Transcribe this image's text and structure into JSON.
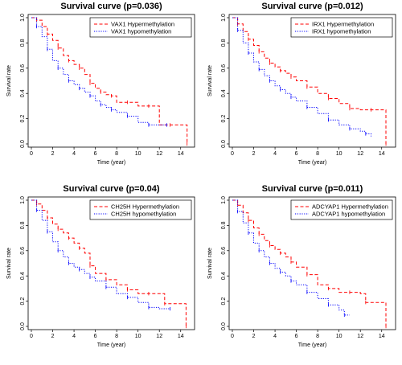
{
  "chart_data": [
    {
      "type": "line",
      "title": "Survival curve (p=0.036)",
      "xlabel": "Time (year)",
      "ylabel": "Survival rate",
      "xlim": [
        0,
        15
      ],
      "ylim": [
        0,
        1
      ],
      "xticks": [
        "0",
        "2",
        "4",
        "6",
        "8",
        "10",
        "12",
        "14"
      ],
      "yticks": [
        "0.0",
        "0.2",
        "0.4",
        "0.6",
        "0.8",
        "1.0"
      ],
      "legend_position": "top-right",
      "series": [
        {
          "name": "VAX1 Hypermethylation",
          "color": "#ff0000",
          "dash": "dashed",
          "x": [
            0,
            0.5,
            1,
            1.5,
            2,
            2.5,
            3,
            3.5,
            4,
            4.5,
            5,
            5.5,
            6,
            6.5,
            7,
            7.5,
            8,
            9,
            10,
            11,
            12,
            13,
            14,
            14.6
          ],
          "y": [
            1.0,
            0.98,
            0.93,
            0.87,
            0.82,
            0.76,
            0.7,
            0.66,
            0.63,
            0.6,
            0.55,
            0.48,
            0.44,
            0.41,
            0.39,
            0.38,
            0.33,
            0.33,
            0.3,
            0.3,
            0.15,
            0.15,
            0.15,
            0.0
          ]
        },
        {
          "name": "VAX1 hypomethylation",
          "color": "#0000ff",
          "dash": "dotted",
          "x": [
            0,
            0.5,
            1,
            1.5,
            2,
            2.5,
            3,
            3.5,
            4,
            4.5,
            5,
            5.5,
            6,
            6.5,
            7,
            7.5,
            8,
            9,
            10,
            11,
            12,
            12.7
          ],
          "y": [
            1.0,
            0.93,
            0.85,
            0.75,
            0.66,
            0.6,
            0.55,
            0.5,
            0.47,
            0.44,
            0.41,
            0.38,
            0.34,
            0.31,
            0.29,
            0.27,
            0.25,
            0.22,
            0.17,
            0.15,
            0.15,
            0.15
          ]
        }
      ]
    },
    {
      "type": "line",
      "title": "Survival curve (p=0.012)",
      "xlabel": "Time (year)",
      "ylabel": "Survival rate",
      "xlim": [
        0,
        15
      ],
      "ylim": [
        0,
        1
      ],
      "xticks": [
        "0",
        "2",
        "4",
        "6",
        "8",
        "10",
        "12",
        "14"
      ],
      "yticks": [
        "0.0",
        "0.2",
        "0.4",
        "0.6",
        "0.8",
        "1.0"
      ],
      "legend_position": "top-right",
      "series": [
        {
          "name": "IRX1 Hypermethylation",
          "color": "#ff0000",
          "dash": "dashed",
          "x": [
            0,
            0.5,
            1,
            1.5,
            2,
            2.5,
            3,
            3.5,
            4,
            4.5,
            5,
            5.5,
            6,
            7,
            8,
            9,
            10,
            11,
            12,
            13,
            14,
            14.4
          ],
          "y": [
            1.0,
            0.95,
            0.89,
            0.83,
            0.78,
            0.73,
            0.68,
            0.64,
            0.61,
            0.58,
            0.56,
            0.53,
            0.5,
            0.45,
            0.4,
            0.36,
            0.32,
            0.28,
            0.27,
            0.27,
            0.27,
            0.0
          ]
        },
        {
          "name": "IRX1 hypomethylation",
          "color": "#0000ff",
          "dash": "dotted",
          "x": [
            0,
            0.5,
            1,
            1.5,
            2,
            2.5,
            3,
            3.5,
            4,
            4.5,
            5,
            5.5,
            6,
            7,
            8,
            9,
            10,
            11,
            12,
            12.5,
            13
          ],
          "y": [
            1.0,
            0.9,
            0.8,
            0.72,
            0.65,
            0.59,
            0.54,
            0.5,
            0.46,
            0.43,
            0.4,
            0.37,
            0.34,
            0.29,
            0.24,
            0.19,
            0.15,
            0.12,
            0.1,
            0.08,
            0.06
          ]
        }
      ]
    },
    {
      "type": "line",
      "title": "Survival curve (p=0.04)",
      "xlabel": "Time (year)",
      "ylabel": "Survival rate",
      "xlim": [
        0,
        15
      ],
      "ylim": [
        0,
        1
      ],
      "xticks": [
        "0",
        "2",
        "4",
        "6",
        "8",
        "10",
        "12",
        "14"
      ],
      "yticks": [
        "0.0",
        "0.2",
        "0.4",
        "0.6",
        "0.8",
        "1.0"
      ],
      "legend_position": "top-right",
      "series": [
        {
          "name": "CH25H Hypermethylation",
          "color": "#ff0000",
          "dash": "dashed",
          "x": [
            0,
            0.5,
            1,
            1.5,
            2,
            2.5,
            3,
            3.5,
            4,
            4.5,
            5,
            5.5,
            6,
            7,
            8,
            9,
            10,
            11,
            12,
            12.5,
            14,
            14.5
          ],
          "y": [
            1.0,
            0.97,
            0.92,
            0.86,
            0.81,
            0.77,
            0.74,
            0.7,
            0.66,
            0.62,
            0.58,
            0.48,
            0.42,
            0.37,
            0.33,
            0.29,
            0.26,
            0.26,
            0.26,
            0.18,
            0.18,
            0.0
          ]
        },
        {
          "name": "CH25H hypomethylation",
          "color": "#0000ff",
          "dash": "dotted",
          "x": [
            0,
            0.5,
            1,
            1.5,
            2,
            2.5,
            3,
            3.5,
            4,
            4.5,
            5,
            5.5,
            6,
            7,
            8,
            9,
            10,
            11,
            12,
            13
          ],
          "y": [
            1.0,
            0.92,
            0.84,
            0.75,
            0.67,
            0.6,
            0.55,
            0.5,
            0.47,
            0.45,
            0.42,
            0.39,
            0.36,
            0.31,
            0.26,
            0.23,
            0.19,
            0.15,
            0.14,
            0.14
          ]
        }
      ]
    },
    {
      "type": "line",
      "title": "Survival curve (p=0.011)",
      "xlabel": "Time (year)",
      "ylabel": "Survival rate",
      "xlim": [
        0,
        15
      ],
      "ylim": [
        0,
        1
      ],
      "xticks": [
        "0",
        "2",
        "4",
        "6",
        "8",
        "10",
        "12",
        "14"
      ],
      "yticks": [
        "0.0",
        "0.2",
        "0.4",
        "0.6",
        "0.8",
        "1.0"
      ],
      "legend_position": "top-right",
      "series": [
        {
          "name": "ADCYAP1 Hypermethylation",
          "color": "#ff0000",
          "dash": "dashed",
          "x": [
            0,
            0.5,
            1,
            1.5,
            2,
            2.5,
            3,
            3.5,
            4,
            4.5,
            5,
            5.5,
            6,
            7,
            8,
            9,
            10,
            11,
            12,
            12.5,
            14,
            14.4
          ],
          "y": [
            1.0,
            0.96,
            0.9,
            0.84,
            0.78,
            0.73,
            0.68,
            0.64,
            0.61,
            0.58,
            0.55,
            0.51,
            0.47,
            0.41,
            0.33,
            0.3,
            0.27,
            0.27,
            0.26,
            0.19,
            0.19,
            0.0
          ]
        },
        {
          "name": "ADCYAP1 hypomethylation",
          "color": "#0000ff",
          "dash": "dotted",
          "x": [
            0,
            0.5,
            1,
            1.5,
            2,
            2.5,
            3,
            3.5,
            4,
            4.5,
            5,
            5.5,
            6,
            7,
            8,
            9,
            10,
            10.5,
            11
          ],
          "y": [
            1.0,
            0.91,
            0.82,
            0.74,
            0.66,
            0.6,
            0.55,
            0.5,
            0.46,
            0.43,
            0.4,
            0.36,
            0.33,
            0.27,
            0.22,
            0.17,
            0.13,
            0.09,
            0.09
          ]
        }
      ]
    }
  ]
}
